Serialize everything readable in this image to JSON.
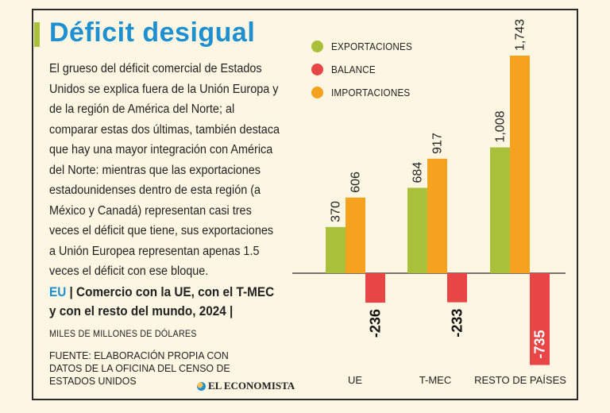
{
  "title": "Déficit desigual",
  "body_text": "El grueso del déficit comercial de Estados Unidos se explica fuera de la Unión Europa y de la región de América del Norte; al comparar estas dos últimas, también destaca que hay una mayor integración con América del Norte: mientras que las exportaciones estadounidenses dentro de esta región (a México y Canadá) representan casi tres veces el déficit que tiene, sus exportaciones a Unión Europea representan apenas 1.5 veces el déficit con ese bloque.",
  "subtitle": {
    "prefix": "EU",
    "text": " | Comercio con la UE, con el T-MEC y con el resto del mundo, 2024 |"
  },
  "units": "MILES DE MILLONES DE DÓLARES",
  "source": "FUENTE: ELABORACIÓN PROPIA CON DATOS DE LA OFICINA DEL CENSO DE ESTADOS UNIDOS",
  "logo": "EL ECONOMISTA",
  "colors": {
    "title": "#1e8fd0",
    "exportaciones": "#a8c03a",
    "balance": "#e84646",
    "importaciones": "#f5a21e"
  },
  "chart_data": {
    "type": "bar",
    "categories": [
      "UE",
      "T-MEC",
      "RESTO DE PAÍSES"
    ],
    "series": [
      {
        "name": "EXPORTACIONES",
        "values": [
          370,
          684,
          1008
        ],
        "labels": [
          "370",
          "684",
          "1,008"
        ]
      },
      {
        "name": "BALANCE",
        "values": [
          -236,
          -233,
          -735
        ],
        "labels": [
          "-236",
          "-233",
          "-735"
        ]
      },
      {
        "name": "IMPORTACIONES",
        "values": [
          606,
          917,
          1743
        ],
        "labels": [
          "606",
          "917",
          "1,743"
        ]
      }
    ],
    "legend_position": "top-left",
    "grid": false
  }
}
